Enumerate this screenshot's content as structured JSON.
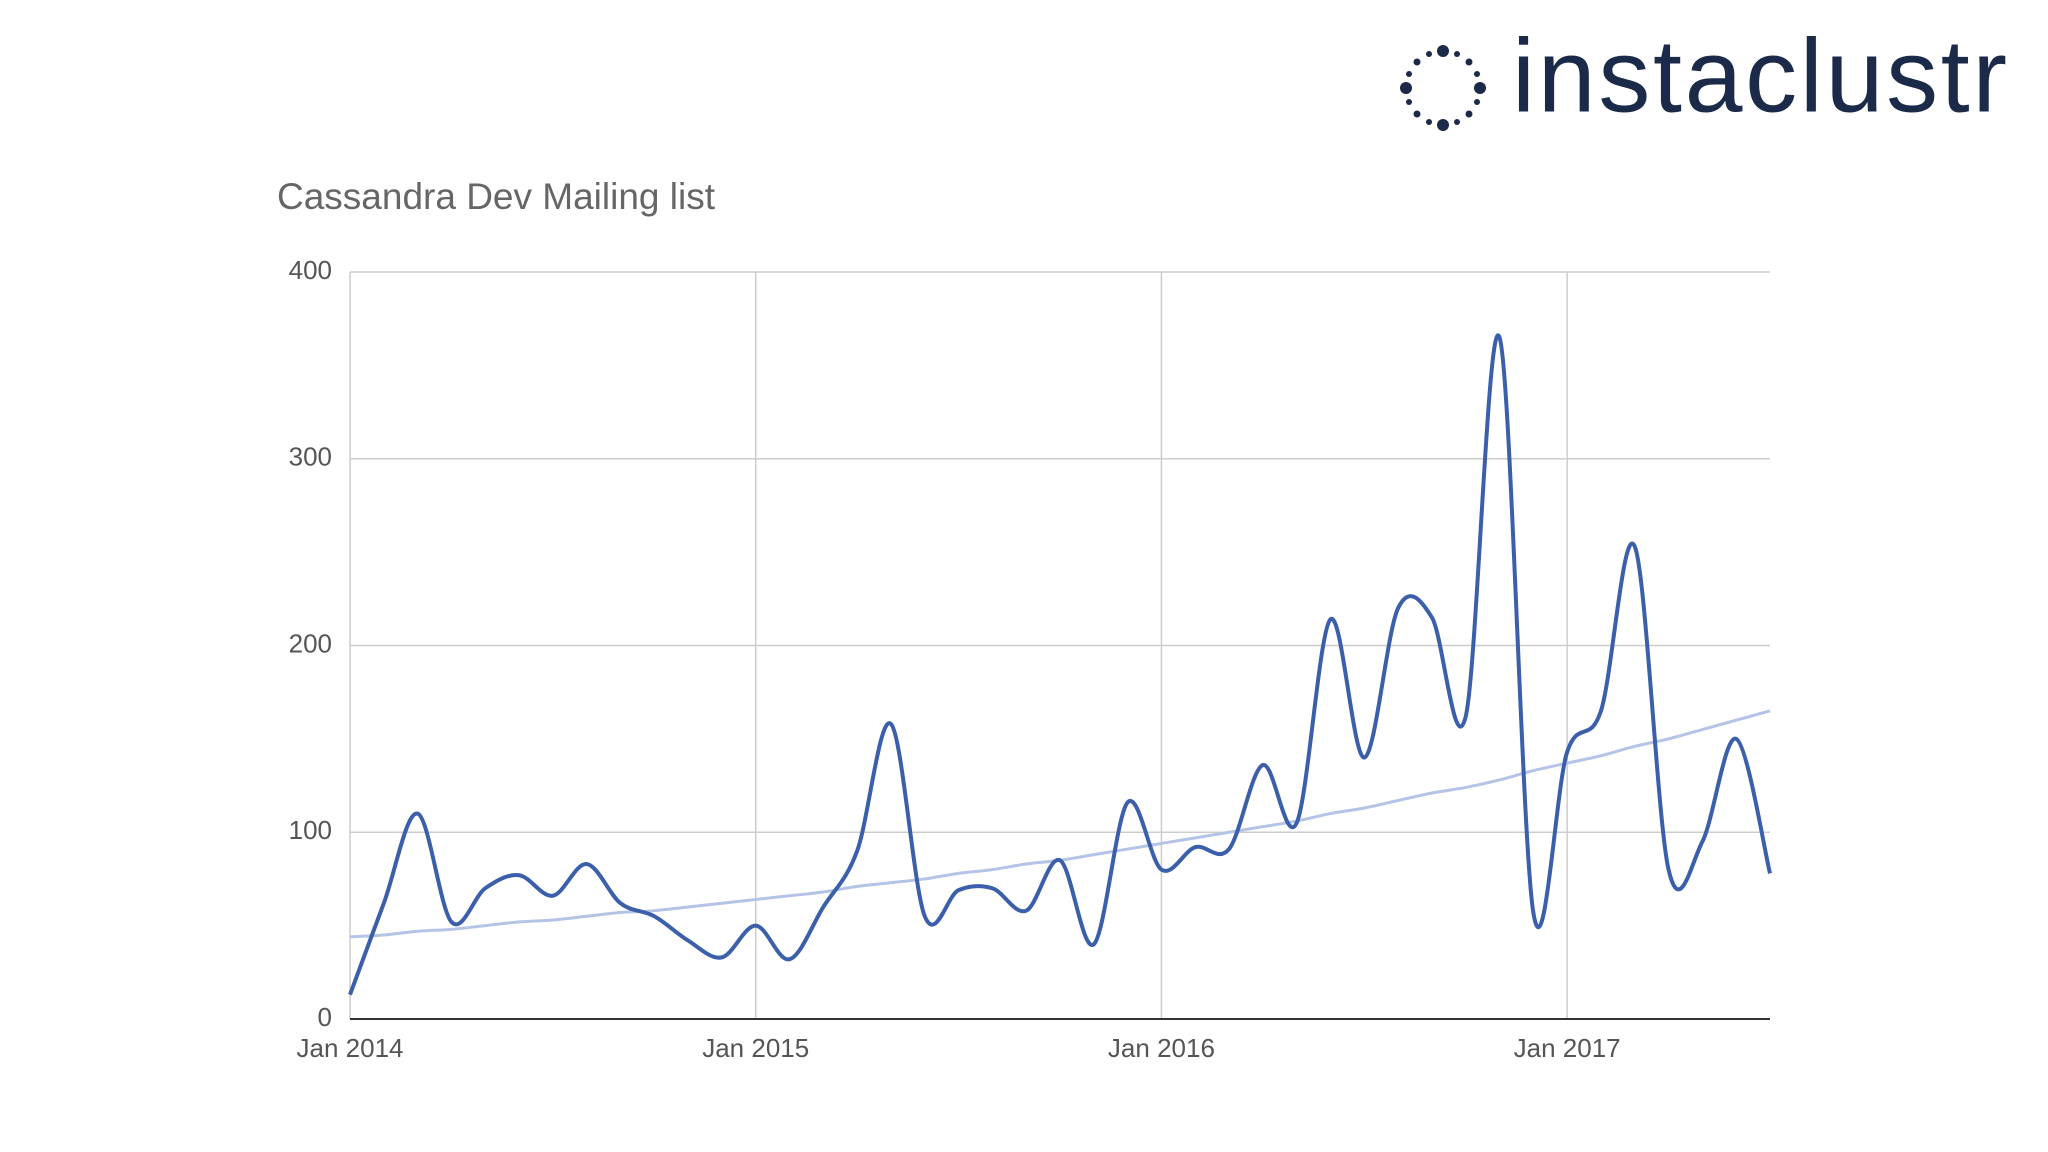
{
  "logo": "instaclustr",
  "chart_data": {
    "type": "line",
    "title": "Cassandra Dev Mailing list",
    "x": [
      "2014-01",
      "2014-02",
      "2014-03",
      "2014-04",
      "2014-05",
      "2014-06",
      "2014-07",
      "2014-08",
      "2014-09",
      "2014-10",
      "2014-11",
      "2014-12",
      "2015-01",
      "2015-02",
      "2015-03",
      "2015-04",
      "2015-05",
      "2015-06",
      "2015-07",
      "2015-08",
      "2015-09",
      "2015-10",
      "2015-11",
      "2015-12",
      "2016-01",
      "2016-02",
      "2016-03",
      "2016-04",
      "2016-05",
      "2016-06",
      "2016-07",
      "2016-08",
      "2016-09",
      "2016-10",
      "2016-11",
      "2016-12",
      "2017-01",
      "2017-02",
      "2017-03",
      "2017-04",
      "2017-05",
      "2017-06",
      "2017-07"
    ],
    "series": [
      {
        "color": "#3b5fab",
        "width": 4,
        "values": [
          13,
          62,
          110,
          52,
          70,
          77,
          66,
          83,
          62,
          55,
          42,
          33,
          50,
          32,
          60,
          90,
          158,
          55,
          69,
          70,
          58,
          85,
          40,
          116,
          80,
          92,
          91,
          136,
          105,
          214,
          140,
          220,
          215,
          162,
          365,
          57,
          143,
          165,
          253,
          80,
          95,
          150,
          78
        ]
      },
      {
        "color": "#b4c3e6",
        "width": 3,
        "values": [
          44,
          45,
          47,
          48,
          50,
          52,
          53,
          55,
          57,
          58,
          60,
          62,
          64,
          66,
          68,
          71,
          73,
          75,
          78,
          80,
          83,
          85,
          88,
          91,
          94,
          97,
          100,
          103,
          106,
          110,
          113,
          117,
          121,
          124,
          128,
          133,
          137,
          141,
          146,
          150,
          155,
          160,
          165
        ]
      }
    ],
    "xticks": [
      {
        "value": "2014-01",
        "label": "Jan 2014"
      },
      {
        "value": "2015-01",
        "label": "Jan 2015"
      },
      {
        "value": "2016-01",
        "label": "Jan 2016"
      },
      {
        "value": "2017-01",
        "label": "Jan 2017"
      }
    ],
    "ylim": [
      0,
      400
    ],
    "yticks": [
      0,
      100,
      200,
      300,
      400
    ],
    "grid": true
  }
}
